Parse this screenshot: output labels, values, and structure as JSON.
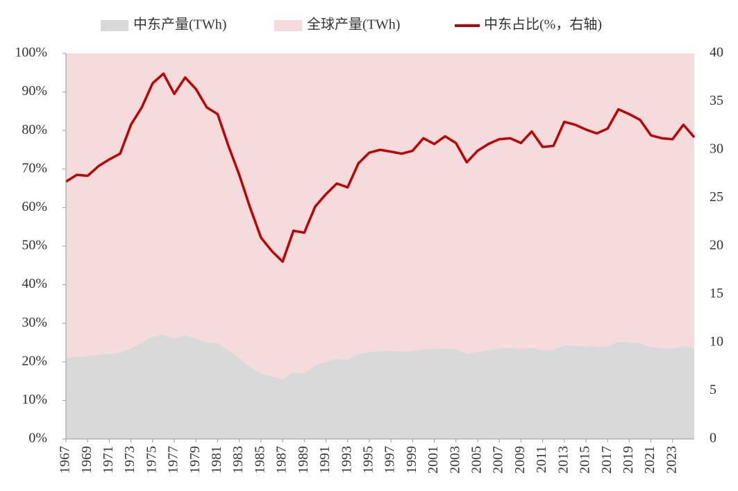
{
  "chart_data": {
    "type": "area",
    "x": [
      1967,
      1968,
      1969,
      1970,
      1971,
      1972,
      1973,
      1974,
      1975,
      1976,
      1977,
      1978,
      1979,
      1980,
      1981,
      1982,
      1983,
      1984,
      1985,
      1986,
      1987,
      1988,
      1989,
      1990,
      1991,
      1992,
      1993,
      1994,
      1995,
      1996,
      1997,
      1998,
      1999,
      2000,
      2001,
      2002,
      2003,
      2004,
      2005,
      2006,
      2007,
      2008,
      2009,
      2010,
      2011,
      2012,
      2013,
      2014,
      2015,
      2016,
      2017,
      2018,
      2019,
      2020,
      2021,
      2022,
      2023,
      2024,
      2025
    ],
    "xlim": [
      1967,
      2025
    ],
    "xticks": [
      1967,
      1969,
      1971,
      1973,
      1975,
      1977,
      1979,
      1981,
      1983,
      1985,
      1987,
      1989,
      1991,
      1993,
      1995,
      1997,
      1999,
      2001,
      2003,
      2005,
      2007,
      2009,
      2011,
      2013,
      2015,
      2017,
      2019,
      2021,
      2023
    ],
    "ylim": [
      0,
      100
    ],
    "yticks": [
      {
        "value": 0,
        "label": "0%"
      },
      {
        "value": 10,
        "label": "10%"
      },
      {
        "value": 20,
        "label": "20%"
      },
      {
        "value": 30,
        "label": "30%"
      },
      {
        "value": 40,
        "label": "40%"
      },
      {
        "value": 50,
        "label": "50%"
      },
      {
        "value": 60,
        "label": "60%"
      },
      {
        "value": 70,
        "label": "70%"
      },
      {
        "value": 80,
        "label": "80%"
      },
      {
        "value": 90,
        "label": "90%"
      },
      {
        "value": 100,
        "label": "100%"
      }
    ],
    "y2lim": [
      0,
      40
    ],
    "y2ticks": [
      0,
      5,
      10,
      15,
      20,
      25,
      30,
      35,
      40
    ],
    "series": [
      {
        "name": "全球产量(TWh)",
        "type": "area",
        "color": "#f4dcdc",
        "values": [
          100,
          100,
          100,
          100,
          100,
          100,
          100,
          100,
          100,
          100,
          100,
          100,
          100,
          100,
          100,
          100,
          100,
          100,
          100,
          100,
          100,
          100,
          100,
          100,
          100,
          100,
          100,
          100,
          100,
          100,
          100,
          100,
          100,
          100,
          100,
          100,
          100,
          100,
          100,
          100,
          100,
          100,
          100,
          100,
          100,
          100,
          100,
          100,
          100,
          100,
          100,
          100,
          100,
          100,
          100,
          100,
          100,
          100,
          100
        ]
      },
      {
        "name": "中东产量(TWh)",
        "type": "area",
        "color": "#d9d9d9",
        "values": [
          21,
          21.3,
          21.5,
          21.8,
          22,
          22.3,
          23.5,
          25,
          26.5,
          27,
          26,
          26.8,
          26,
          25,
          24.8,
          23,
          21,
          18.5,
          17,
          16.2,
          15.5,
          17.3,
          17,
          19,
          20,
          20.8,
          20.5,
          22,
          22.5,
          22.8,
          22.8,
          22.6,
          22.8,
          23.3,
          23.3,
          23.4,
          23.3,
          22,
          22.6,
          23,
          23.4,
          23.6,
          23.3,
          23.6,
          23,
          23.1,
          24.3,
          24.2,
          24,
          23.9,
          24,
          25.2,
          25,
          24.8,
          23.8,
          23.6,
          23.5,
          24,
          23.5
        ]
      },
      {
        "name": "中东占比(%，右轴)",
        "type": "line",
        "axis": "y2",
        "color": "#c00000",
        "values": [
          26.7,
          27.4,
          27.3,
          28.3,
          29,
          29.6,
          32.6,
          34.4,
          36.9,
          37.9,
          35.8,
          37.5,
          36.3,
          34.4,
          33.7,
          30.4,
          27.4,
          24,
          20.9,
          19.5,
          18.4,
          21.6,
          21.4,
          24.1,
          25.4,
          26.5,
          26.1,
          28.6,
          29.7,
          30,
          29.8,
          29.6,
          29.9,
          31.2,
          30.6,
          31.4,
          30.7,
          28.7,
          29.9,
          30.6,
          31.1,
          31.2,
          30.7,
          31.9,
          30.3,
          30.4,
          32.9,
          32.6,
          32.1,
          31.7,
          32.2,
          34.2,
          33.7,
          33.1,
          31.5,
          31.2,
          31.1,
          32.6,
          31.3
        ]
      }
    ]
  }
}
